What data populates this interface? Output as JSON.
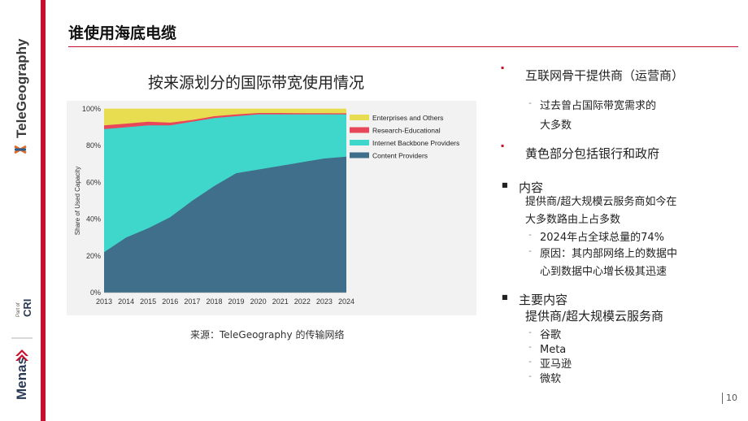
{
  "slide": {
    "title": "谁使用海底电缆",
    "chart_title": "按来源划分的国际带宽使用情况",
    "source": "来源：TeleGeography 的传输网络",
    "page_number": "10",
    "brand_logo": "TeleGeography",
    "partner_logo": "Menas",
    "partner_sub": "Part of",
    "partner_sub2": "CRI",
    "accent_color": "#c8102e"
  },
  "bullets": [
    {
      "level": 1,
      "mark": "red-dot",
      "text": "互联网骨干提供商（运营商）"
    },
    {
      "level": 2,
      "mark": "dash",
      "text": "过去曾占国际带宽需求的"
    },
    {
      "level": 2,
      "mark": "none",
      "text": "大多数"
    },
    {
      "level": 1,
      "mark": "red-dot",
      "text": "黄色部分包括银行和政府"
    },
    {
      "level": 1,
      "mark": "square",
      "text": "内容"
    },
    {
      "level": 2,
      "mark": "none",
      "text": "提供商/超大规模云服务商如今在"
    },
    {
      "level": 2,
      "mark": "none",
      "text": "大多数路由上占多数"
    },
    {
      "level": 2,
      "mark": "dash",
      "text": "2024年占全球总量的74%"
    },
    {
      "level": 2,
      "mark": "dash",
      "text": "原因：其内部网络上的数据中"
    },
    {
      "level": 2,
      "mark": "none",
      "text": "心到数据中心增长极其迅速"
    },
    {
      "level": 1,
      "mark": "square",
      "text": "主要内容"
    },
    {
      "level": 1,
      "mark": "none",
      "text": "提供商/超大规模云服务商"
    },
    {
      "level": 2,
      "mark": "dash",
      "text": "谷歌"
    },
    {
      "level": 2,
      "mark": "dash",
      "text": "Meta"
    },
    {
      "level": 2,
      "mark": "dash",
      "text": "亚马逊"
    },
    {
      "level": 2,
      "mark": "dash",
      "text": "微软"
    }
  ],
  "chart_data": {
    "type": "area",
    "stacked": true,
    "title": "",
    "xlabel": "",
    "ylabel": "Share of Used Capacity",
    "x": [
      "2013",
      "2014",
      "2015",
      "2016",
      "2017",
      "2018",
      "2019",
      "2020",
      "2021",
      "2022",
      "2023",
      "2024"
    ],
    "ylim": [
      0,
      100
    ],
    "yticks": [
      "0%",
      "20%",
      "40%",
      "60%",
      "80%",
      "100%"
    ],
    "legend_position": "top-right",
    "series": [
      {
        "name": "Content Providers",
        "color": "#3f6f8a",
        "values": [
          22,
          30,
          35,
          41,
          50,
          58,
          65,
          67,
          69,
          71,
          73,
          74
        ]
      },
      {
        "name": "Internet Backbone Providers",
        "color": "#3fd6cc",
        "values": [
          67,
          60,
          56,
          50,
          43,
          37,
          31,
          30,
          28,
          26,
          24,
          23
        ]
      },
      {
        "name": "Research-Educational",
        "color": "#e8475a",
        "values": [
          2,
          2,
          2,
          1.5,
          1,
          1,
          1,
          0.8,
          0.8,
          0.7,
          0.7,
          0.6
        ]
      },
      {
        "name": "Enterprises and Others",
        "color": "#e8dc50",
        "values": [
          9,
          8,
          7,
          7.5,
          6,
          4,
          3,
          2.2,
          2.2,
          2.3,
          2.3,
          2.4
        ]
      }
    ]
  }
}
